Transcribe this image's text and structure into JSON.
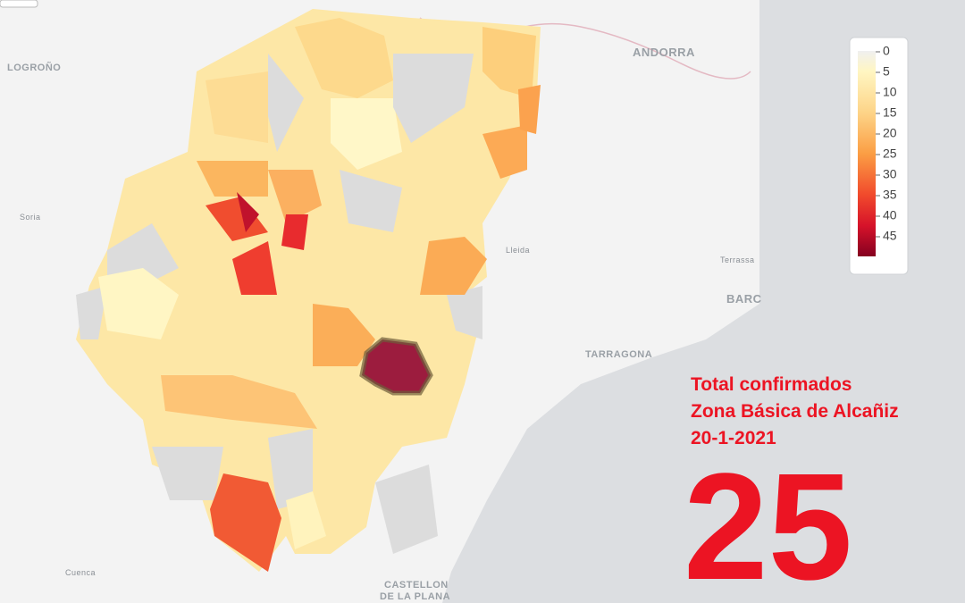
{
  "map": {
    "place_labels": {
      "logrono": "LOGROÑO",
      "andorra": "ANDORRA",
      "soria": "Soria",
      "lleida": "Lleida",
      "terrassa": "Terrassa",
      "barcelona": "BARC",
      "tarragona": "TARRAGONA",
      "cuenca": "Cuenca",
      "castellon": [
        "CASTELLON",
        "DE LA PLANA"
      ]
    },
    "legend": {
      "ticks": [
        0,
        5,
        10,
        15,
        20,
        25,
        30,
        35,
        40,
        45
      ]
    }
  },
  "overlay": {
    "lines": [
      "Total confirmados",
      "Zona Básica de Alcañiz",
      "20-1-2021"
    ],
    "total": "25"
  }
}
